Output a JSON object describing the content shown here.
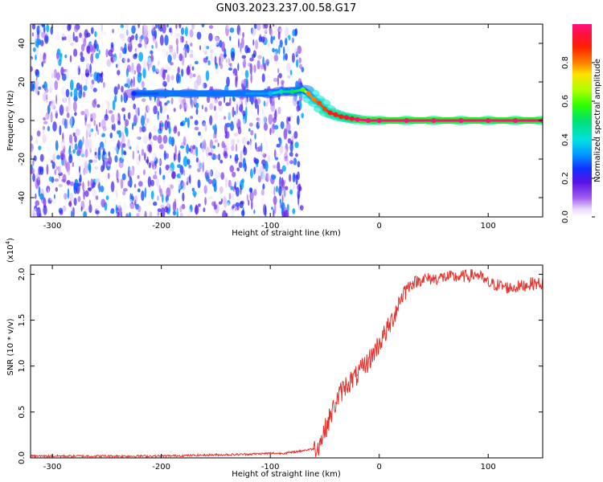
{
  "figure": {
    "title": "GN03.2023.237.00.58.G17"
  },
  "chart_data": [
    {
      "type": "heatmap",
      "title": "GN03.2023.237.00.58.G17",
      "xlabel": "Height of straight line (km)",
      "ylabel": "Frequency (Hz)",
      "xlim": [
        -320,
        150
      ],
      "ylim": [
        -50,
        50
      ],
      "xticks": [
        -300,
        -200,
        -100,
        0,
        100
      ],
      "yticks": [
        -40,
        -20,
        0,
        20,
        40
      ],
      "xtick_labels": [
        "-300",
        "-200",
        "-100",
        "0",
        "100"
      ],
      "ytick_labels": [
        "-40",
        "-20",
        "0",
        "20",
        "40"
      ],
      "colorbar": {
        "label": "Normalized spectral amplitude",
        "range": [
          0,
          1
        ],
        "ticks": [
          0.0,
          0.2,
          0.4,
          0.6,
          0.8
        ],
        "tick_labels": [
          "0.0",
          "0.2",
          "0.4",
          "0.6",
          "0.8"
        ],
        "colormap": "rainbow (purple → blue → cyan → green → yellow → orange → red → magenta)"
      },
      "noise_region": {
        "x_range": [
          -320,
          -70
        ],
        "frequency_range": [
          -50,
          50
        ],
        "amplitude_range": [
          0.0,
          0.35
        ]
      },
      "ridge": {
        "x": [
          -225,
          -200,
          -175,
          -150,
          -125,
          -100,
          -90,
          -80,
          -70,
          -65,
          -60,
          -55,
          -50,
          -45,
          -40,
          -35,
          -30,
          -25,
          -20,
          -10,
          0,
          25,
          50,
          75,
          100,
          125,
          150
        ],
        "frequency": [
          14,
          14,
          14,
          14,
          14,
          14,
          15,
          15,
          16,
          14,
          11,
          9,
          6,
          4,
          3,
          2,
          1.5,
          1,
          0.5,
          0,
          0,
          0,
          0,
          0,
          0,
          0,
          0
        ],
        "amplitude": [
          0.25,
          0.3,
          0.3,
          0.3,
          0.3,
          0.35,
          0.45,
          0.5,
          0.6,
          0.8,
          0.8,
          0.85,
          0.85,
          0.9,
          0.9,
          0.9,
          0.95,
          0.95,
          1.0,
          1.0,
          1.0,
          1.0,
          1.0,
          1.0,
          1.0,
          1.0,
          1.0
        ]
      }
    },
    {
      "type": "line",
      "title": "",
      "xlabel": "Height of straight line (km)",
      "ylabel": "SNR (10 * v/v)",
      "ylabel_multiplier": "(x10",
      "ylabel_multiplier_exp": "4",
      "ylabel_multiplier_close": ")",
      "xlim": [
        -320,
        150
      ],
      "ylim": [
        0,
        2.1
      ],
      "xticks": [
        -300,
        -200,
        -100,
        0,
        100
      ],
      "yticks": [
        0.0,
        0.5,
        1.0,
        1.5,
        2.0
      ],
      "xtick_labels": [
        "-300",
        "-200",
        "-100",
        "0",
        "100"
      ],
      "ytick_labels": [
        "0.0",
        "0.5",
        "1.0",
        "1.5",
        "2.0"
      ],
      "series": [
        {
          "color": "#e8302a",
          "x": [
            -320,
            -280,
            -240,
            -200,
            -160,
            -120,
            -100,
            -90,
            -80,
            -70,
            -60,
            -55,
            -50,
            -45,
            -40,
            -35,
            -30,
            -25,
            -20,
            -15,
            -10,
            -5,
            0,
            5,
            10,
            15,
            20,
            25,
            30,
            40,
            50,
            60,
            70,
            80,
            90,
            100,
            110,
            120,
            130,
            140,
            150
          ],
          "y": [
            0.02,
            0.02,
            0.02,
            0.02,
            0.03,
            0.04,
            0.05,
            0.05,
            0.06,
            0.08,
            0.1,
            0.15,
            0.3,
            0.45,
            0.6,
            0.72,
            0.8,
            0.85,
            0.9,
            0.98,
            1.05,
            1.15,
            1.25,
            1.35,
            1.45,
            1.6,
            1.75,
            1.85,
            1.9,
            1.95,
            1.95,
            1.97,
            1.97,
            1.98,
            2.0,
            1.9,
            1.88,
            1.85,
            1.87,
            1.9,
            1.9
          ]
        }
      ]
    }
  ]
}
